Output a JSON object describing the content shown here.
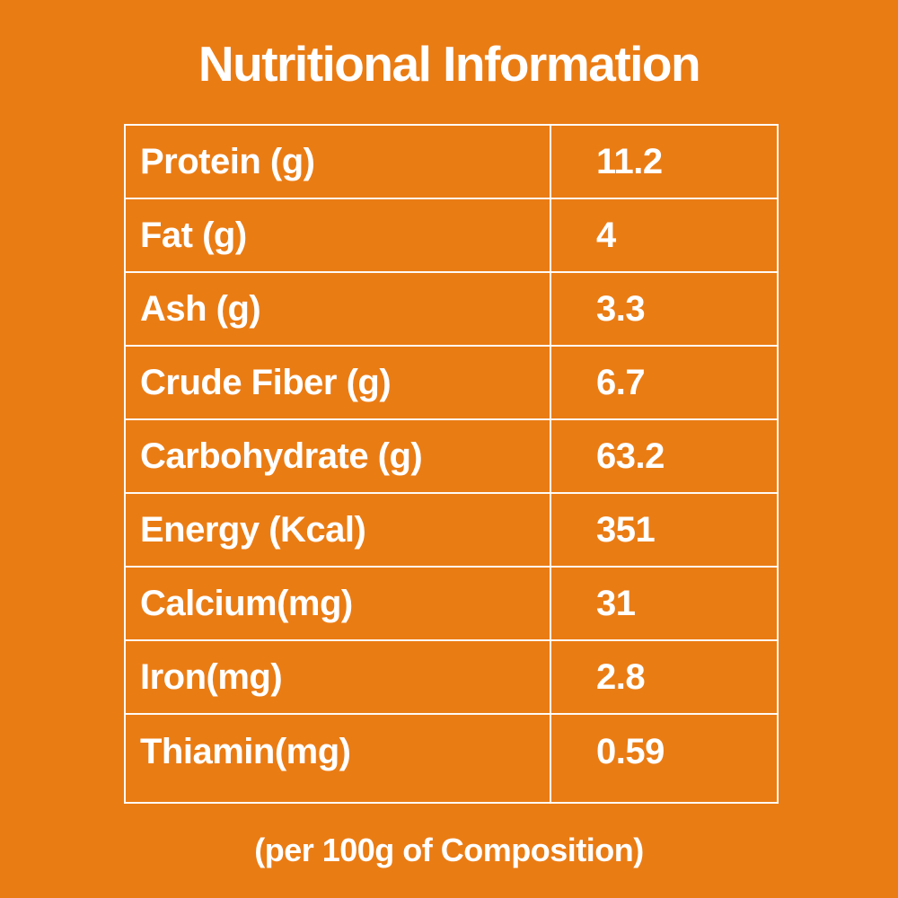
{
  "page": {
    "background_color": "#EA7C14",
    "text_color": "#FFFFFF",
    "border_color": "#FFFFFF"
  },
  "title": "Nutritional Information",
  "footnote": "(per 100g of Composition)",
  "table": {
    "rows": [
      {
        "label": "Protein (g)",
        "value": "11.2"
      },
      {
        "label": "Fat (g)",
        "value": "4"
      },
      {
        "label": "Ash (g)",
        "value": "3.3"
      },
      {
        "label": "Crude Fiber (g)",
        "value": "6.7"
      },
      {
        "label": "Carbohydrate (g)",
        "value": "63.2"
      },
      {
        "label": "Energy (Kcal)",
        "value": "351"
      },
      {
        "label": "Calcium(mg)",
        "value": "31"
      },
      {
        "label": "Iron(mg)",
        "value": "2.8"
      },
      {
        "label": "Thiamin(mg)",
        "value": "0.59"
      }
    ]
  }
}
